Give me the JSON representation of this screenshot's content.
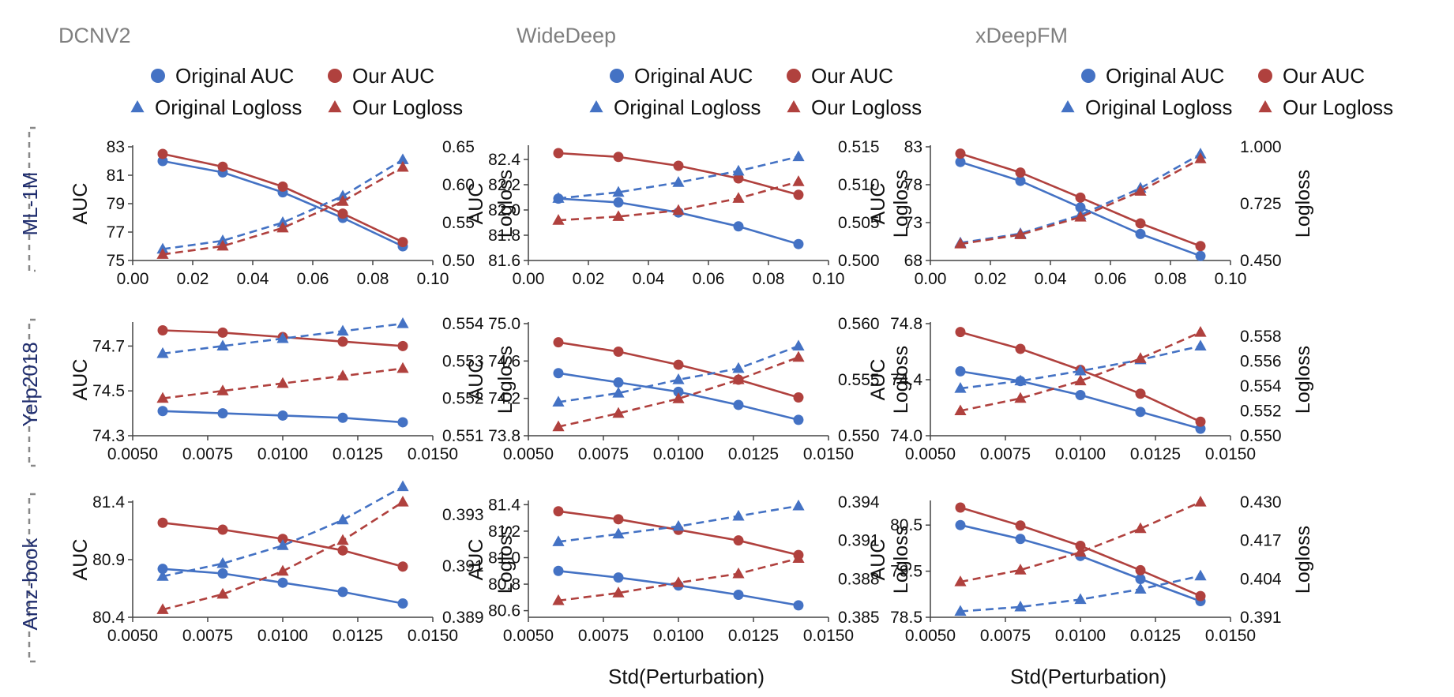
{
  "colors": {
    "original": "#4472c4",
    "ours": "#b0413e",
    "axis": "#444444",
    "title": "#7f7f7f",
    "row_label": "#1f2d6e"
  },
  "models": [
    "DCNV2",
    "WideDeep",
    "xDeepFM"
  ],
  "datasets": [
    "ML-1M",
    "Yelp2018",
    "Amz-book"
  ],
  "legend": {
    "original_auc": "Original AUC",
    "our_auc": "Our AUC",
    "original_logloss": "Original Logloss",
    "our_logloss": "Our Logloss"
  },
  "x_axis_label": "Std(Perturbation)",
  "chart_data": [
    {
      "type": "line",
      "model": "DCNV2",
      "dataset": "ML-1M",
      "x": [
        0.01,
        0.03,
        0.05,
        0.07,
        0.09
      ],
      "xlim": [
        0.0,
        0.1
      ],
      "xticks": [
        "0.00",
        "0.02",
        "0.04",
        "0.06",
        "0.08",
        "0.10"
      ],
      "ylabel": "AUC",
      "ylim": [
        75,
        83
      ],
      "yticks": [
        "75",
        "77",
        "79",
        "81",
        "83"
      ],
      "y2label": "Logloss",
      "y2lim": [
        0.5,
        0.65
      ],
      "y2ticks": [
        "0.50",
        "0.55",
        "0.60",
        "0.65"
      ],
      "series": [
        {
          "name": "Original AUC",
          "axis": "left",
          "values": [
            82.0,
            81.2,
            79.8,
            78.0,
            76.0
          ]
        },
        {
          "name": "Our AUC",
          "axis": "left",
          "values": [
            82.5,
            81.6,
            80.2,
            78.3,
            76.3
          ]
        },
        {
          "name": "Original Logloss",
          "axis": "right",
          "values": [
            0.515,
            0.526,
            0.55,
            0.585,
            0.633
          ]
        },
        {
          "name": "Our Logloss",
          "axis": "right",
          "values": [
            0.508,
            0.519,
            0.543,
            0.578,
            0.623
          ]
        }
      ]
    },
    {
      "type": "line",
      "model": "WideDeep",
      "dataset": "ML-1M",
      "x": [
        0.01,
        0.03,
        0.05,
        0.07,
        0.09
      ],
      "xlim": [
        0.0,
        0.1
      ],
      "xticks": [
        "0.00",
        "0.02",
        "0.04",
        "0.06",
        "0.08",
        "0.10"
      ],
      "ylabel": "AUC",
      "ylim": [
        81.6,
        82.5
      ],
      "yticks": [
        "81.6",
        "81.8",
        "82.0",
        "82.2",
        "82.4"
      ],
      "y2label": "Logloss",
      "y2lim": [
        0.5,
        0.515
      ],
      "y2ticks": [
        "0.500",
        "0.505",
        "0.510",
        "0.515"
      ],
      "series": [
        {
          "name": "Original AUC",
          "axis": "left",
          "values": [
            82.09,
            82.06,
            81.98,
            81.87,
            81.73
          ]
        },
        {
          "name": "Our AUC",
          "axis": "left",
          "values": [
            82.45,
            82.42,
            82.35,
            82.25,
            82.12
          ]
        },
        {
          "name": "Original Logloss",
          "axis": "right",
          "values": [
            0.5082,
            0.509,
            0.5103,
            0.5118,
            0.5137
          ]
        },
        {
          "name": "Our Logloss",
          "axis": "right",
          "values": [
            0.5053,
            0.5058,
            0.5066,
            0.5082,
            0.5104
          ]
        }
      ]
    },
    {
      "type": "line",
      "model": "xDeepFM",
      "dataset": "ML-1M",
      "x": [
        0.01,
        0.03,
        0.05,
        0.07,
        0.09
      ],
      "xlim": [
        0.0,
        0.1
      ],
      "xticks": [
        "0.00",
        "0.02",
        "0.04",
        "0.06",
        "0.08",
        "0.10"
      ],
      "ylabel": "AUC",
      "ylim": [
        68,
        83
      ],
      "yticks": [
        "68",
        "73",
        "78",
        "83"
      ],
      "y2label": "Logloss",
      "y2lim": [
        0.45,
        1.0
      ],
      "y2ticks": [
        "0.450",
        "0.725",
        "1.000"
      ],
      "series": [
        {
          "name": "Original AUC",
          "axis": "left",
          "values": [
            81.0,
            78.5,
            75.0,
            71.5,
            68.6
          ]
        },
        {
          "name": "Our AUC",
          "axis": "left",
          "values": [
            82.1,
            79.6,
            76.3,
            72.9,
            69.9
          ]
        },
        {
          "name": "Original Logloss",
          "axis": "right",
          "values": [
            0.535,
            0.58,
            0.67,
            0.8,
            0.965
          ]
        },
        {
          "name": "Our Logloss",
          "axis": "right",
          "values": [
            0.53,
            0.575,
            0.66,
            0.785,
            0.942
          ]
        }
      ]
    },
    {
      "type": "line",
      "model": "DCNV2",
      "dataset": "Yelp2018",
      "x": [
        0.006,
        0.008,
        0.01,
        0.012,
        0.014
      ],
      "xlim": [
        0.005,
        0.015
      ],
      "xticks": [
        "0.0050",
        "0.0075",
        "0.0100",
        "0.0125",
        "0.0150"
      ],
      "ylabel": "AUC",
      "ylim": [
        74.3,
        74.8
      ],
      "yticks": [
        "74.3",
        "74.5",
        "74.7"
      ],
      "y2label": "Logloss",
      "y2lim": [
        0.551,
        0.554
      ],
      "y2ticks": [
        "0.551",
        "0.552",
        "0.553",
        "0.554"
      ],
      "series": [
        {
          "name": "Original AUC",
          "axis": "left",
          "values": [
            74.41,
            74.4,
            74.39,
            74.38,
            74.36
          ]
        },
        {
          "name": "Our AUC",
          "axis": "left",
          "values": [
            74.77,
            74.76,
            74.74,
            74.72,
            74.7
          ]
        },
        {
          "name": "Original Logloss",
          "axis": "right",
          "values": [
            0.5532,
            0.5534,
            0.5536,
            0.5538,
            0.554
          ]
        },
        {
          "name": "Our Logloss",
          "axis": "right",
          "values": [
            0.552,
            0.5522,
            0.5524,
            0.5526,
            0.5528
          ]
        }
      ]
    },
    {
      "type": "line",
      "model": "WideDeep",
      "dataset": "Yelp2018",
      "x": [
        0.006,
        0.008,
        0.01,
        0.012,
        0.014
      ],
      "xlim": [
        0.005,
        0.015
      ],
      "xticks": [
        "0.0050",
        "0.0075",
        "0.0100",
        "0.0125",
        "0.0150"
      ],
      "ylabel": "AUC",
      "ylim": [
        73.8,
        75.0
      ],
      "yticks": [
        "73.8",
        "74.2",
        "74.6",
        "75.0"
      ],
      "y2label": "Logloss",
      "y2lim": [
        0.55,
        0.56
      ],
      "y2ticks": [
        "0.550",
        "0.555",
        "0.560"
      ],
      "series": [
        {
          "name": "Original AUC",
          "axis": "left",
          "values": [
            74.47,
            74.37,
            74.27,
            74.13,
            73.97
          ]
        },
        {
          "name": "Our AUC",
          "axis": "left",
          "values": [
            74.8,
            74.7,
            74.56,
            74.4,
            74.21
          ]
        },
        {
          "name": "Original Logloss",
          "axis": "right",
          "values": [
            0.553,
            0.5538,
            0.555,
            0.556,
            0.558
          ]
        },
        {
          "name": "Our Logloss",
          "axis": "right",
          "values": [
            0.5508,
            0.552,
            0.5533,
            0.555,
            0.557
          ]
        }
      ]
    },
    {
      "type": "line",
      "model": "xDeepFM",
      "dataset": "Yelp2018",
      "x": [
        0.006,
        0.008,
        0.01,
        0.012,
        0.014
      ],
      "xlim": [
        0.005,
        0.015
      ],
      "xticks": [
        "0.0050",
        "0.0075",
        "0.0100",
        "0.0125",
        "0.0150"
      ],
      "ylabel": "AUC",
      "ylim": [
        74.0,
        74.8
      ],
      "yticks": [
        "74.0",
        "74.4",
        "74.8"
      ],
      "y2label": "Logloss",
      "y2lim": [
        0.55,
        0.559
      ],
      "y2ticks": [
        "0.550",
        "0.552",
        "0.554",
        "0.556",
        "0.558"
      ],
      "series": [
        {
          "name": "Original AUC",
          "axis": "left",
          "values": [
            74.46,
            74.39,
            74.29,
            74.17,
            74.05
          ]
        },
        {
          "name": "Our AUC",
          "axis": "left",
          "values": [
            74.74,
            74.62,
            74.47,
            74.3,
            74.1
          ]
        },
        {
          "name": "Original Logloss",
          "axis": "right",
          "values": [
            0.5538,
            0.5544,
            0.5552,
            0.5561,
            0.5572
          ]
        },
        {
          "name": "Our Logloss",
          "axis": "right",
          "values": [
            0.552,
            0.553,
            0.5544,
            0.5562,
            0.5583
          ]
        }
      ]
    },
    {
      "type": "line",
      "model": "DCNV2",
      "dataset": "Amz-book",
      "x": [
        0.006,
        0.008,
        0.01,
        0.012,
        0.014
      ],
      "xlim": [
        0.005,
        0.015
      ],
      "xticks": [
        "0.0050",
        "0.0075",
        "0.0100",
        "0.0125",
        "0.0150"
      ],
      "ylabel": "AUC",
      "ylim": [
        80.4,
        81.4
      ],
      "yticks": [
        "80.4",
        "80.9",
        "81.4"
      ],
      "y2label": "Logloss",
      "y2lim": [
        0.389,
        0.3935
      ],
      "y2ticks": [
        "0.389",
        "0.391",
        "0.393"
      ],
      "series": [
        {
          "name": "Original AUC",
          "axis": "left",
          "values": [
            80.82,
            80.78,
            80.7,
            80.62,
            80.52
          ]
        },
        {
          "name": "Our AUC",
          "axis": "left",
          "values": [
            81.22,
            81.16,
            81.08,
            80.98,
            80.84
          ]
        },
        {
          "name": "Original Logloss",
          "axis": "right",
          "values": [
            0.3906,
            0.3911,
            0.3918,
            0.3928,
            0.3941
          ]
        },
        {
          "name": "Our Logloss",
          "axis": "right",
          "values": [
            0.3893,
            0.3899,
            0.3908,
            0.392,
            0.3935
          ]
        }
      ]
    },
    {
      "type": "line",
      "model": "WideDeep",
      "dataset": "Amz-book",
      "x": [
        0.006,
        0.008,
        0.01,
        0.012,
        0.014
      ],
      "xlim": [
        0.005,
        0.015
      ],
      "xticks": [
        "0.0050",
        "0.0075",
        "0.0100",
        "0.0125",
        "0.0150"
      ],
      "ylabel": "AUC",
      "ylim": [
        80.55,
        81.42
      ],
      "yticks": [
        "80.6",
        "80.8",
        "81.0",
        "81.2",
        "81.4"
      ],
      "y2label": "Logloss",
      "y2lim": [
        0.385,
        0.394
      ],
      "y2ticks": [
        "0.385",
        "0.388",
        "0.391",
        "0.394"
      ],
      "series": [
        {
          "name": "Original AUC",
          "axis": "left",
          "values": [
            80.9,
            80.85,
            80.79,
            80.72,
            80.64
          ]
        },
        {
          "name": "Our AUC",
          "axis": "left",
          "values": [
            81.35,
            81.29,
            81.21,
            81.13,
            81.02
          ]
        },
        {
          "name": "Original Logloss",
          "axis": "right",
          "values": [
            0.3909,
            0.3915,
            0.3921,
            0.3929,
            0.3937
          ]
        },
        {
          "name": "Our Logloss",
          "axis": "right",
          "values": [
            0.3863,
            0.3869,
            0.3877,
            0.3884,
            0.3896
          ]
        }
      ]
    },
    {
      "type": "line",
      "model": "xDeepFM",
      "dataset": "Amz-book",
      "x": [
        0.006,
        0.008,
        0.01,
        0.012,
        0.014
      ],
      "xlim": [
        0.005,
        0.015
      ],
      "xticks": [
        "0.0050",
        "0.0075",
        "0.0100",
        "0.0125",
        "0.0150"
      ],
      "ylabel": "AUC",
      "ylim": [
        78.5,
        81.0
      ],
      "yticks": [
        "78.5",
        "79.5",
        "80.5"
      ],
      "y2label": "Logloss",
      "y2lim": [
        0.391,
        0.43
      ],
      "y2ticks": [
        "0.391",
        "0.404",
        "0.417",
        "0.430"
      ],
      "series": [
        {
          "name": "Original AUC",
          "axis": "left",
          "values": [
            80.5,
            80.2,
            79.83,
            79.33,
            78.85
          ]
        },
        {
          "name": "Our AUC",
          "axis": "left",
          "values": [
            80.88,
            80.49,
            80.05,
            79.52,
            78.96
          ]
        },
        {
          "name": "Original Logloss",
          "axis": "right",
          "values": [
            0.393,
            0.3945,
            0.397,
            0.4005,
            0.405
          ]
        },
        {
          "name": "Our Logloss",
          "axis": "right",
          "values": [
            0.403,
            0.407,
            0.413,
            0.421,
            0.43
          ]
        }
      ]
    }
  ]
}
